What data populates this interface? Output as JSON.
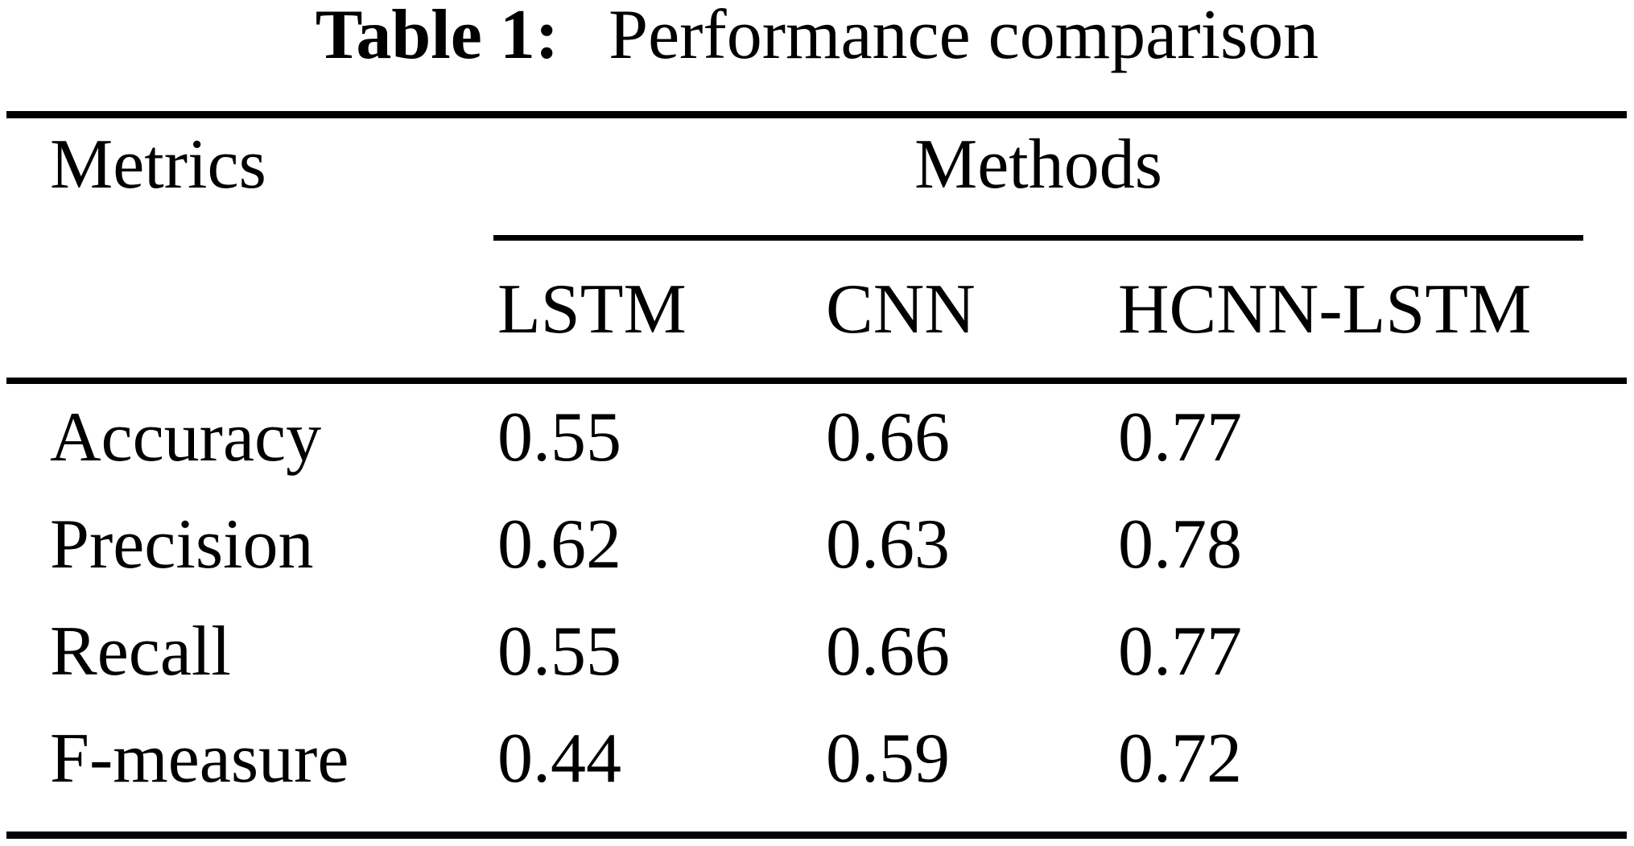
{
  "caption": {
    "label": "Table 1:",
    "text": "Performance comparison"
  },
  "table": {
    "metrics_header": "Metrics",
    "methods_header": "Methods",
    "columns": [
      "LSTM",
      "CNN",
      "HCNN-LSTM"
    ],
    "rows": [
      {
        "metric": "Accuracy",
        "values": [
          "0.55",
          "0.66",
          "0.77"
        ]
      },
      {
        "metric": "Precision",
        "values": [
          "0.62",
          "0.63",
          "0.78"
        ]
      },
      {
        "metric": "Recall",
        "values": [
          "0.55",
          "0.66",
          "0.77"
        ]
      },
      {
        "metric": "F-measure",
        "values": [
          "0.44",
          "0.59",
          "0.72"
        ]
      }
    ]
  },
  "colors": {
    "background": "#ffffff",
    "text": "#000000",
    "rule": "#000000"
  },
  "chart_data": {
    "type": "table",
    "title": "Table 1: Performance comparison",
    "row_header": "Metrics",
    "column_group": "Methods",
    "categories": [
      "LSTM",
      "CNN",
      "HCNN-LSTM"
    ],
    "series": [
      {
        "name": "Accuracy",
        "values": [
          0.55,
          0.66,
          0.77
        ]
      },
      {
        "name": "Precision",
        "values": [
          0.62,
          0.63,
          0.78
        ]
      },
      {
        "name": "Recall",
        "values": [
          0.55,
          0.66,
          0.77
        ]
      },
      {
        "name": "F-measure",
        "values": [
          0.44,
          0.59,
          0.72
        ]
      }
    ]
  }
}
